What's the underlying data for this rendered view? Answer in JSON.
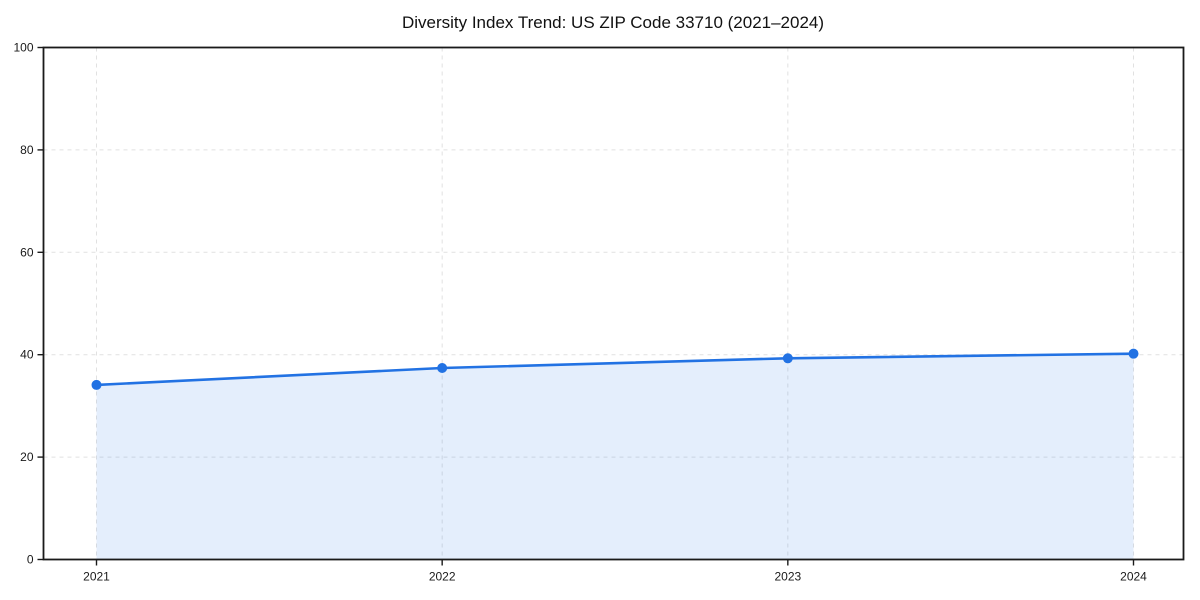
{
  "chart_data": {
    "type": "area",
    "title": "Diversity Index Trend: US ZIP Code 33710 (2021–2024)",
    "x": [
      "2021",
      "2022",
      "2023",
      "2024"
    ],
    "series": [
      {
        "name": "Diversity Index",
        "values": [
          34.1,
          37.4,
          39.3,
          40.2
        ]
      }
    ],
    "xlabel": "",
    "ylabel": "",
    "ylim": [
      0,
      100
    ],
    "yticks": [
      0,
      20,
      40,
      60,
      80,
      100
    ],
    "grid": "dashed-both-axes",
    "legend": "none",
    "colors": {
      "line": "#2272e3",
      "marker": "#2272e3",
      "fill": "#2272e3",
      "fill_opacity": 0.12,
      "grid": "#e1e1e1",
      "spine": "#1a1a1a",
      "text": "#111111"
    }
  }
}
